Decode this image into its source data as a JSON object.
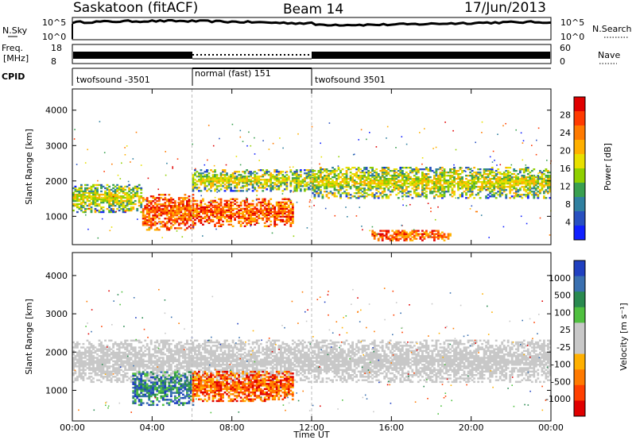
{
  "header": {
    "station": "Saskatoon (fitACF)",
    "beam": "Beam 14",
    "date": "17/Jun/2013"
  },
  "top_panels": {
    "nsky_label": "N.Sky",
    "nsky_ticks": [
      "10^5",
      "10^0"
    ],
    "nsearch_label": "N.Search",
    "freq_label_1": "Freq.",
    "freq_label_2": "[MHz]",
    "freq_ticks": [
      "18",
      "8"
    ],
    "nave_ticks": [
      "60",
      "0"
    ],
    "nave_label": "Nave",
    "cpid_label": "CPID",
    "cpid_segments": [
      {
        "start": 0,
        "end": 6,
        "name": "twofsound -3501"
      },
      {
        "start": 6,
        "end": 12,
        "name": "normal (fast) 151"
      },
      {
        "start": 12,
        "end": 24,
        "name": "twofsound 3501"
      }
    ]
  },
  "chart_data": [
    {
      "type": "heatmap",
      "panel": "power",
      "ylabel": "Slant Range [km]",
      "xlabel": "Time UT",
      "xlim": [
        0,
        24
      ],
      "ylim": [
        200,
        4600
      ],
      "y_ticks": [
        1000,
        2000,
        3000,
        4000
      ],
      "x_ticks": [
        "00:00",
        "04:00",
        "08:00",
        "12:00",
        "16:00",
        "20:00",
        "00:00"
      ],
      "colorbar": {
        "label": "Power [dB]",
        "ticks": [
          "28",
          "24",
          "20",
          "16",
          "12",
          "8",
          "4"
        ],
        "colors": [
          "#e00000",
          "#ff3a00",
          "#ff7a00",
          "#ffb000",
          "#e8e000",
          "#8fd000",
          "#3aa050",
          "#3080a0",
          "#2850c0",
          "#1020ff"
        ]
      },
      "bands": [
        {
          "t": [
            0,
            3.5
          ],
          "r": [
            1100,
            1900
          ],
          "level": "mid"
        },
        {
          "t": [
            3.5,
            6
          ],
          "r": [
            600,
            1600
          ],
          "level": "high"
        },
        {
          "t": [
            6,
            11
          ],
          "r": [
            700,
            1500
          ],
          "level": "high"
        },
        {
          "t": [
            6,
            12
          ],
          "r": [
            1700,
            2300
          ],
          "level": "mid"
        },
        {
          "t": [
            12,
            24
          ],
          "r": [
            1500,
            2400
          ],
          "level": "mid"
        },
        {
          "t": [
            15,
            19
          ],
          "r": [
            300,
            600
          ],
          "level": "high"
        }
      ]
    },
    {
      "type": "heatmap",
      "panel": "velocity",
      "ylabel": "Slant Range [km]",
      "xlabel": "Time UT",
      "xlim": [
        0,
        24
      ],
      "ylim": [
        200,
        4600
      ],
      "y_ticks": [
        1000,
        2000,
        3000,
        4000
      ],
      "x_ticks": [
        "00:00",
        "04:00",
        "08:00",
        "12:00",
        "16:00",
        "20:00",
        "00:00"
      ],
      "colorbar": {
        "label": "Velocity [m s⁻¹]",
        "ticks": [
          "1000",
          "500",
          "100",
          "25",
          "-25",
          "-100",
          "-500",
          "-1000"
        ],
        "colors": [
          "#2040c0",
          "#3a70b0",
          "#2a8a50",
          "#50c040",
          "#c8c8c8",
          "#c8c8c8",
          "#ffb000",
          "#ff7a00",
          "#ff4000",
          "#e00000"
        ]
      },
      "bands": [
        {
          "t": [
            0,
            24
          ],
          "r": [
            1200,
            2300
          ],
          "level": "ground"
        },
        {
          "t": [
            3,
            6
          ],
          "r": [
            600,
            1500
          ],
          "level": "toward"
        },
        {
          "t": [
            6,
            11
          ],
          "r": [
            700,
            1500
          ],
          "level": "away"
        }
      ]
    }
  ]
}
